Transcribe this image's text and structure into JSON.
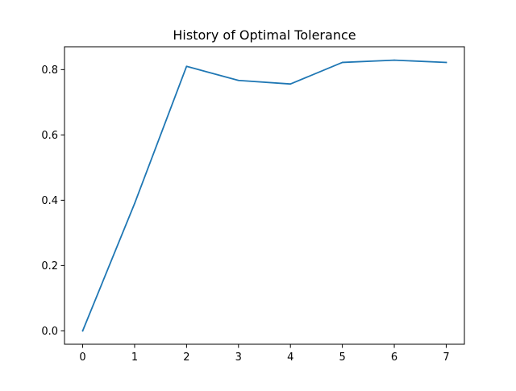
{
  "chart_data": {
    "type": "line",
    "title": "History of Optimal Tolerance",
    "xlabel": "",
    "ylabel": "",
    "x": [
      0,
      1,
      2,
      3,
      4,
      5,
      6,
      7
    ],
    "series": [
      {
        "values": [
          0.0,
          0.39,
          0.81,
          0.767,
          0.756,
          0.822,
          0.829,
          0.822
        ],
        "color": "#1f77b4"
      }
    ],
    "xlim": [
      -0.35,
      7.35
    ],
    "ylim": [
      -0.041,
      0.87
    ],
    "xticks": [
      0,
      1,
      2,
      3,
      4,
      5,
      6,
      7
    ],
    "xtick_labels": [
      "0",
      "1",
      "2",
      "3",
      "4",
      "5",
      "6",
      "7"
    ],
    "yticks": [
      0.0,
      0.2,
      0.4,
      0.6,
      0.8
    ],
    "ytick_labels": [
      "0.0",
      "0.2",
      "0.4",
      "0.6",
      "0.8"
    ],
    "grid": false,
    "legend": "none"
  }
}
